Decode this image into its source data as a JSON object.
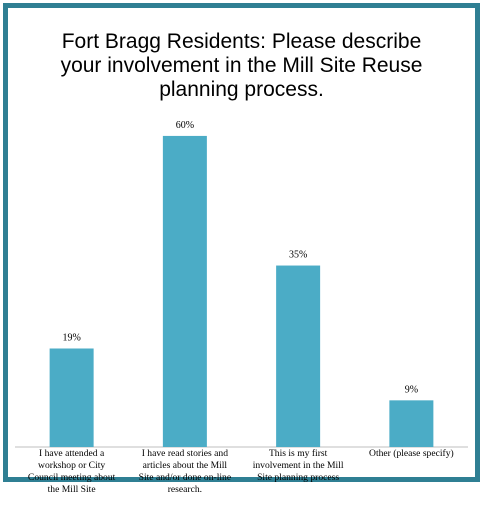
{
  "chart_data": {
    "type": "bar",
    "title_lines": [
      "Fort Bragg Residents: Please describe",
      "your involvement in the Mill Site Reuse",
      "planning process."
    ],
    "categories": [
      "I have attended a workshop or City Council meeting about the Mill Site",
      "I have read stories and articles about the Mill Site and/or done on-line research.",
      "This is my first involvement in the Mill Site planning process",
      "Other (please specify)"
    ],
    "category_lines": [
      [
        "I have attended a",
        "workshop or City",
        "Council meeting about",
        "the Mill Site"
      ],
      [
        "I have read stories and",
        "articles about the Mill",
        "Site and/or done on-line",
        "research."
      ],
      [
        "This is my first",
        "involvement in the Mill",
        "Site planning process"
      ],
      [
        "Other (please specify)"
      ]
    ],
    "values": [
      19,
      60,
      35,
      9
    ],
    "data_labels": [
      "19%",
      "60%",
      "35%",
      "9%"
    ],
    "ylim": [
      0,
      65
    ],
    "grid": false,
    "legend": "none",
    "bar_color": "#4bacc6",
    "frame_color": "#2f7f93"
  }
}
